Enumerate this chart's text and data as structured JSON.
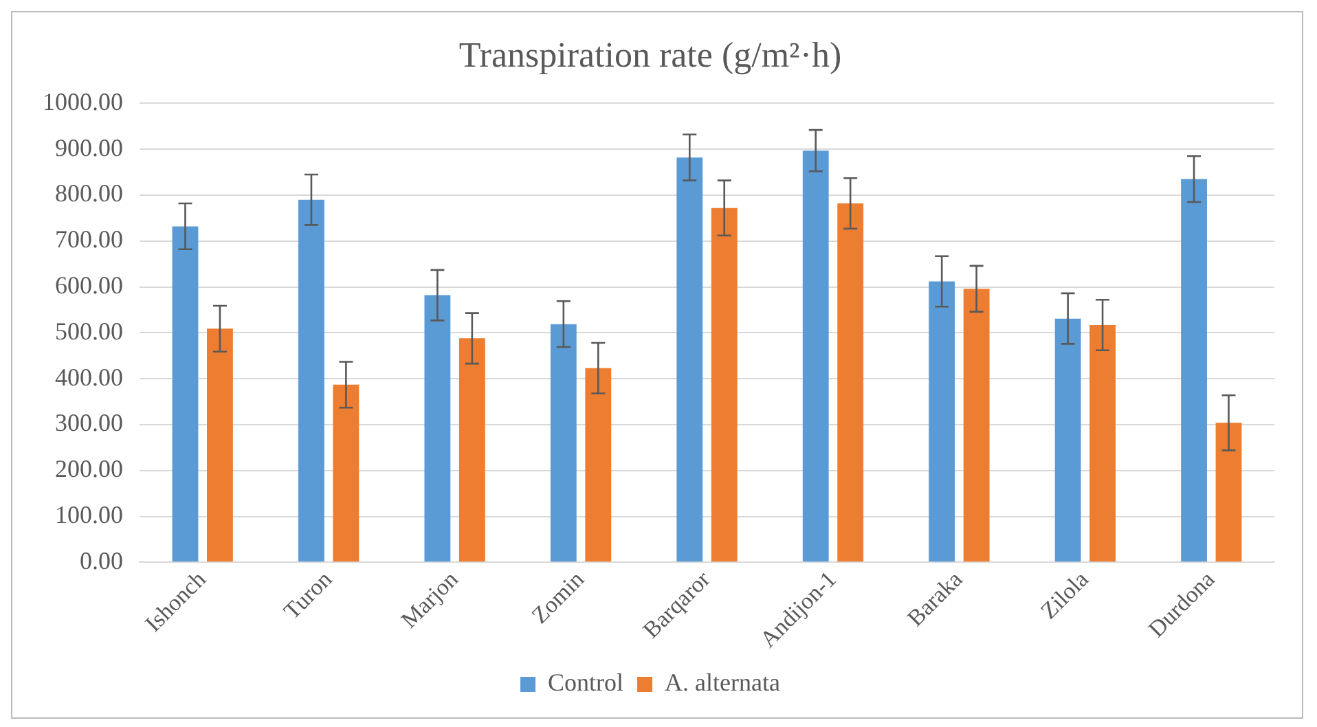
{
  "chart_data": {
    "type": "bar",
    "title": "Transpiration rate (g/m²·h)",
    "categories": [
      "Ishonch",
      "Turon",
      "Marjon",
      "Zomin",
      "Barqaror",
      "Andijon-1",
      "Baraka",
      "Zilola",
      "Durdona"
    ],
    "series": [
      {
        "name": "Control",
        "color": "#5b9bd5",
        "values": [
          732,
          790,
          582,
          519,
          882,
          897,
          612,
          531,
          835
        ],
        "errors": [
          50,
          55,
          55,
          50,
          50,
          45,
          55,
          55,
          50
        ]
      },
      {
        "name": "A. alternata",
        "color": "#ed7d31",
        "values": [
          509,
          387,
          488,
          423,
          772,
          782,
          596,
          517,
          304
        ],
        "errors": [
          50,
          50,
          55,
          55,
          60,
          55,
          50,
          55,
          60
        ]
      }
    ],
    "ylim": [
      0,
      1000
    ],
    "yticks": [
      {
        "value": 0,
        "label": "0.00"
      },
      {
        "value": 100,
        "label": "100.00"
      },
      {
        "value": 200,
        "label": "200.00"
      },
      {
        "value": 300,
        "label": "300.00"
      },
      {
        "value": 400,
        "label": "400.00"
      },
      {
        "value": 500,
        "label": "500.00"
      },
      {
        "value": 600,
        "label": "600.00"
      },
      {
        "value": 700,
        "label": "700.00"
      },
      {
        "value": 800,
        "label": "800.00"
      },
      {
        "value": 900,
        "label": "900.00"
      },
      {
        "value": 1000,
        "label": "1000.00"
      }
    ],
    "grid": "y",
    "legend": "bottom"
  }
}
